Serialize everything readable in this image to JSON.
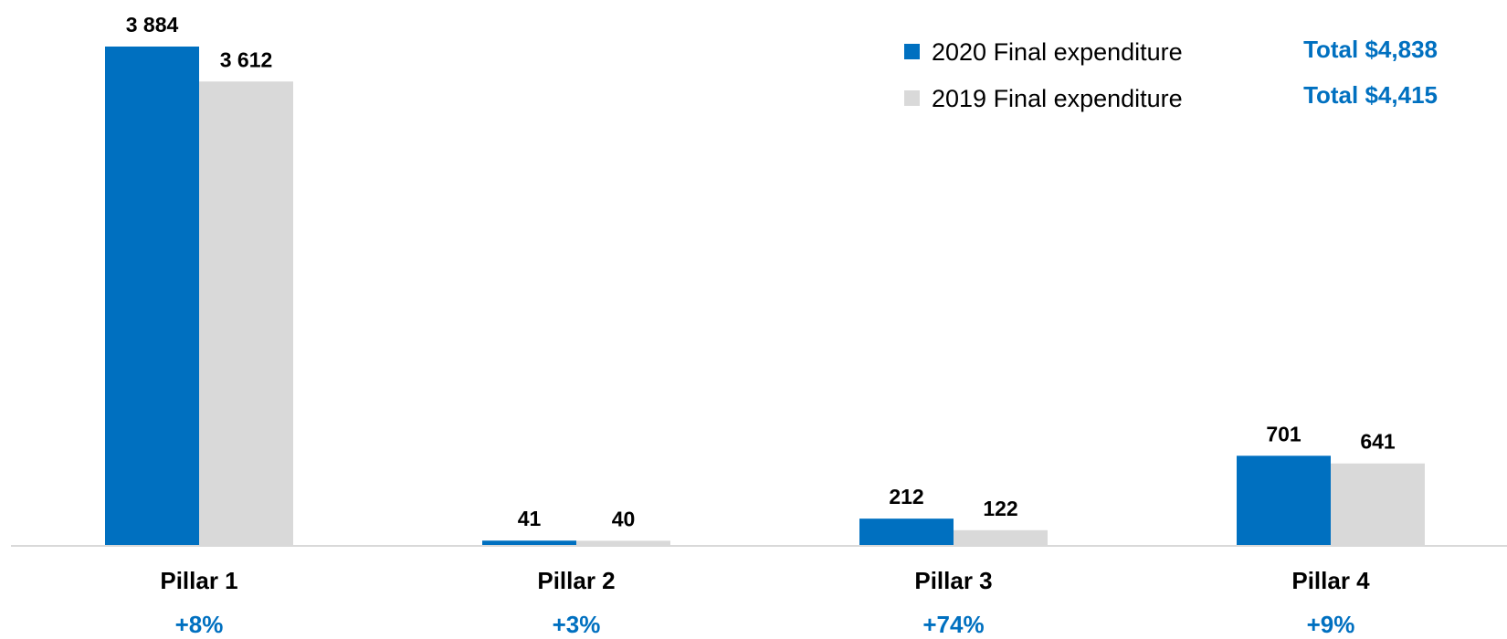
{
  "colors": {
    "series_2020": "#0070c0",
    "series_2019": "#d9d9d9",
    "accent_text": "#0070c0",
    "axis": "#d9d9d9"
  },
  "chart_data": {
    "type": "bar",
    "categories": [
      "Pillar 1",
      "Pillar 2",
      "Pillar 3",
      "Pillar 4"
    ],
    "series": [
      {
        "name": "2020 Final expenditure",
        "values": [
          3884,
          41,
          212,
          701
        ],
        "labels": [
          "3 884",
          "41",
          "212",
          "701"
        ],
        "total": "Total $4,838"
      },
      {
        "name": "2019 Final expenditure",
        "values": [
          3612,
          40,
          122,
          641
        ],
        "labels": [
          "3 612",
          "40",
          "122",
          "641"
        ],
        "total": "Total $4,415"
      }
    ],
    "changes": [
      "+8%",
      "+3%",
      "+74%",
      "+9%"
    ],
    "ylim": [
      0,
      3884
    ],
    "grid": false,
    "legend_position": "top-right"
  }
}
